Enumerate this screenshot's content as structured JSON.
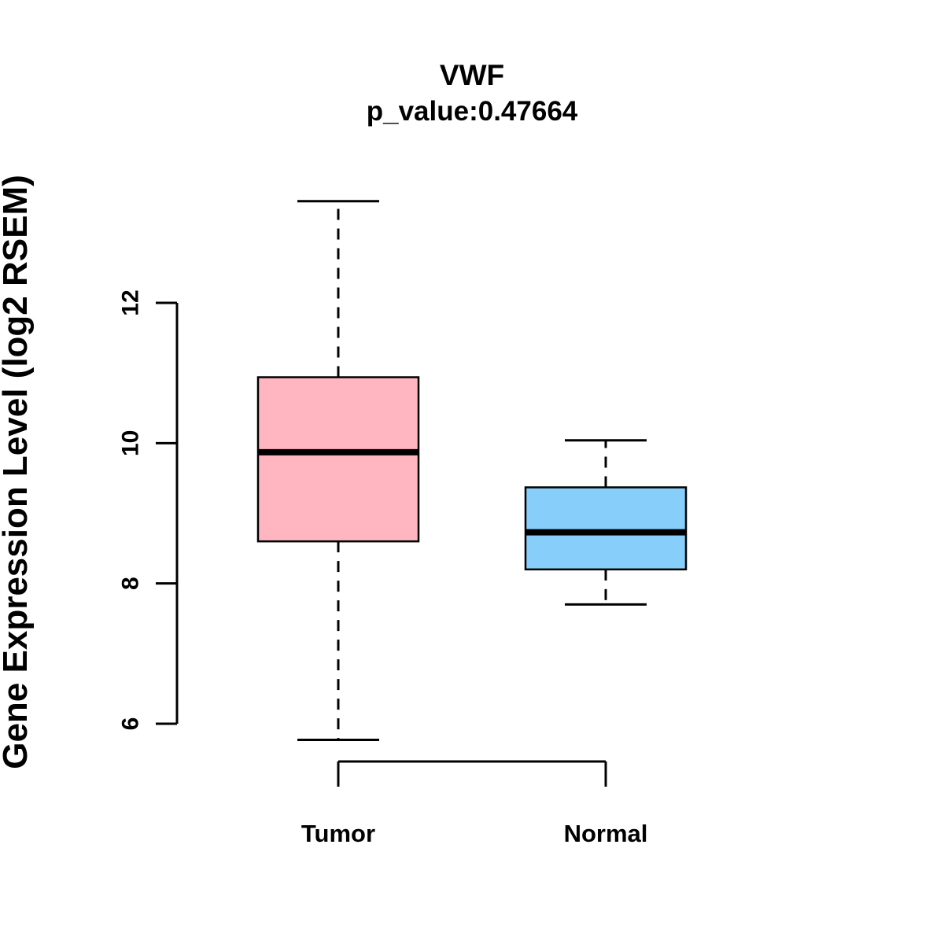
{
  "chart_data": {
    "type": "boxplot",
    "title": "VWF",
    "subtitle": "p_value:0.47664",
    "ylabel": "Gene Expression Level (log2 RSEM)",
    "yticks": [
      6,
      8,
      10,
      12
    ],
    "ylim": [
      5.2,
      13.6
    ],
    "grid": false,
    "legend": "none",
    "groups": [
      {
        "label": "Tumor",
        "color": "#FFB6C1",
        "lower_whisker": 5.77,
        "q1": 8.6,
        "median": 9.87,
        "q3": 10.94,
        "upper_whisker": 13.45
      },
      {
        "label": "Normal",
        "color": "#87CEFA",
        "lower_whisker": 7.7,
        "q1": 8.2,
        "median": 8.73,
        "q3": 9.37,
        "upper_whisker": 10.04
      }
    ]
  }
}
